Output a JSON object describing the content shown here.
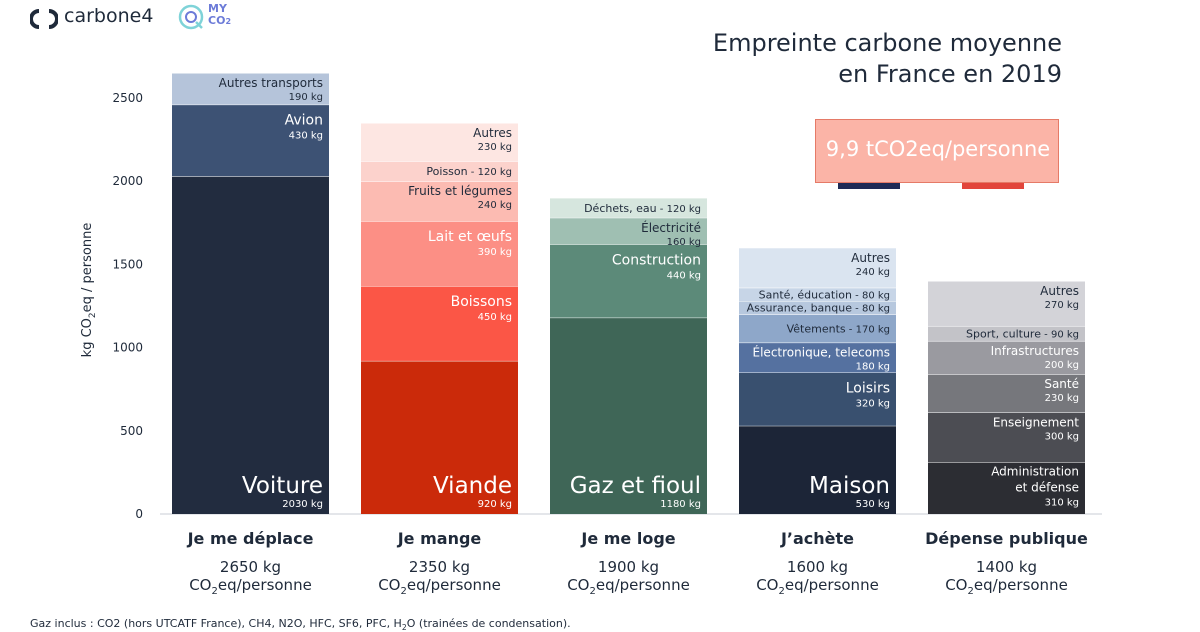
{
  "logos": {
    "brand": "carbone4",
    "partner_line1": "MY",
    "partner_line2": "CO",
    "partner_sub": "2"
  },
  "title_line1": "Empreinte carbone moyenne",
  "title_line2": "en France en 2019",
  "badge": "9,9 tCO2eq/personne",
  "flag_colors": [
    "#1f2a55",
    "#ffffff",
    "#e2453b"
  ],
  "footnote_prefix": "Gaz inclus : CO2 (hors UTCATF France), CH4, N2O, HFC, SF6, PFC, H",
  "footnote_sub": "2",
  "footnote_suffix": "O (trainées de condensation).",
  "chart_data": {
    "type": "bar",
    "stacked": true,
    "ylabel": "kg CO2eq / personne",
    "ylabel_parts": [
      "kg CO",
      "2",
      "eq / personne"
    ],
    "yticks": [
      "0",
      "500",
      "1000",
      "1500",
      "2000",
      "2500"
    ],
    "ylim": [
      0,
      2650
    ],
    "categories": [
      {
        "name": "Je me déplace",
        "total": "2650 kg",
        "unit_prefix": "CO",
        "unit_sub": "2",
        "unit_suffix": "eq/personne",
        "segments": [
          {
            "label": "Voiture",
            "kg": "2030 kg",
            "value": 2030,
            "color": "#222c3f",
            "size": "big"
          },
          {
            "label": "Avion",
            "kg": "430 kg",
            "value": 430,
            "color": "#3d5274",
            "size": "medium"
          },
          {
            "label": "Autres transports",
            "kg": "190 kg",
            "value": 190,
            "color": "#b5c4da",
            "size": "small",
            "dark": true
          }
        ]
      },
      {
        "name": "Je mange",
        "total": "2350 kg",
        "unit_prefix": "CO",
        "unit_sub": "2",
        "unit_suffix": "eq/personne",
        "segments": [
          {
            "label": "Viande",
            "kg": "920 kg",
            "value": 920,
            "color": "#cb2a0a",
            "size": "big"
          },
          {
            "label": "Boissons",
            "kg": "450 kg",
            "value": 450,
            "color": "#fb5646",
            "size": "medium"
          },
          {
            "label": "Lait et œufs",
            "kg": "390 kg",
            "value": 390,
            "color": "#fc8f85",
            "size": "medium"
          },
          {
            "label": "Fruits et légumes",
            "kg": "240 kg",
            "value": 240,
            "color": "#fcbbb2",
            "size": "small",
            "dark": true
          },
          {
            "label": "Poisson",
            "kg": "120 kg",
            "value": 120,
            "color": "#fcd2cc",
            "size": "inline",
            "dark": true
          },
          {
            "label": "Autres",
            "kg": "230 kg",
            "value": 230,
            "color": "#fde6e2",
            "size": "small",
            "dark": true
          }
        ]
      },
      {
        "name": "Je me loge",
        "total": "1900 kg",
        "unit_prefix": "CO",
        "unit_sub": "2",
        "unit_suffix": "eq/personne",
        "segments": [
          {
            "label": "Gaz et fioul",
            "kg": "1180 kg",
            "value": 1180,
            "color": "#3f6657",
            "size": "big"
          },
          {
            "label": "Construction",
            "kg": "440 kg",
            "value": 440,
            "color": "#5c8a79",
            "size": "medium"
          },
          {
            "label": "Électricité",
            "kg": "160 kg",
            "value": 160,
            "color": "#9fbfb2",
            "size": "small",
            "dark": true
          },
          {
            "label": "Déchets, eau",
            "kg": "120 kg",
            "value": 120,
            "color": "#d6e6de",
            "size": "inline",
            "dark": true
          }
        ]
      },
      {
        "name": "J’achète",
        "total": "1600 kg",
        "unit_prefix": "CO",
        "unit_sub": "2",
        "unit_suffix": "eq/personne",
        "segments": [
          {
            "label": "Maison",
            "kg": "530 kg",
            "value": 530,
            "color": "#1c2537",
            "size": "big"
          },
          {
            "label": "Loisirs",
            "kg": "320 kg",
            "value": 320,
            "color": "#39506f",
            "size": "medium"
          },
          {
            "label": "Électronique, telecoms",
            "kg": "180 kg",
            "value": 180,
            "color": "#5571a0",
            "size": "small"
          },
          {
            "label": "Vêtements",
            "kg": "170 kg",
            "value": 170,
            "color": "#8ea7c9",
            "size": "inline",
            "dark": true
          },
          {
            "label": "Assurance, banque",
            "kg": "80 kg",
            "value": 80,
            "color": "#b7c8de",
            "size": "inline",
            "dark": true
          },
          {
            "label": "Santé, éducation",
            "kg": "80 kg",
            "value": 80,
            "color": "#c7d5e7",
            "size": "inline",
            "dark": true
          },
          {
            "label": "Autres",
            "kg": "240 kg",
            "value": 240,
            "color": "#dae4f0",
            "size": "small",
            "dark": true
          }
        ]
      },
      {
        "name": "Dépense publique",
        "total": "1400 kg",
        "unit_prefix": "CO",
        "unit_sub": "2",
        "unit_suffix": "eq/personne",
        "segments": [
          {
            "label": "Administration et défense",
            "label_lines": [
              "Administration",
              "et défense"
            ],
            "kg": "310 kg",
            "value": 310,
            "color": "#2c2d33",
            "size": "small"
          },
          {
            "label": "Enseignement",
            "kg": "300 kg",
            "value": 300,
            "color": "#4c4d53",
            "size": "small"
          },
          {
            "label": "Santé",
            "kg": "230 kg",
            "value": 230,
            "color": "#76777c",
            "size": "small"
          },
          {
            "label": "Infrastructures",
            "kg": "200 kg",
            "value": 200,
            "color": "#9a9aa0",
            "size": "small"
          },
          {
            "label": "Sport, culture",
            "kg": "90 kg",
            "value": 90,
            "color": "#c3c3c8",
            "size": "inline",
            "dark": true
          },
          {
            "label": "Autres",
            "kg": "270 kg",
            "value": 270,
            "color": "#d3d3d8",
            "size": "small",
            "dark": true
          }
        ]
      }
    ]
  }
}
